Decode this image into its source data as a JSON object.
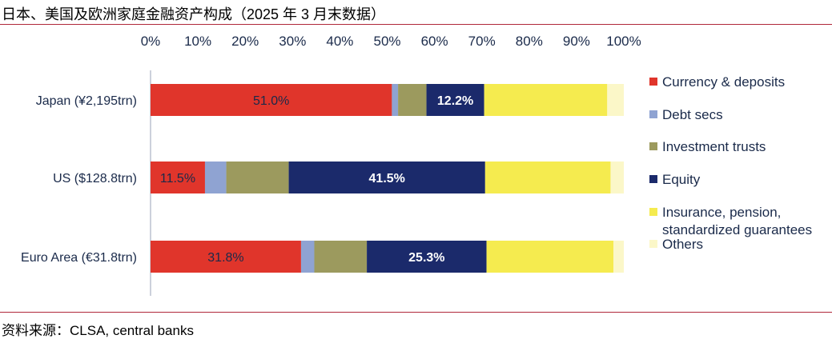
{
  "title": "日本、美国及欧洲家庭金融资产构成（2025 年 3 月末数据）",
  "source": "资料来源：CLSA, central banks",
  "chart_data": {
    "type": "bar",
    "orientation": "horizontal",
    "stacked": true,
    "percent": true,
    "categories": [
      "Japan (¥2,195trn)",
      "US ($128.8trn)",
      "Euro Area (€31.8trn)"
    ],
    "x_ticks": [
      "0%",
      "10%",
      "20%",
      "30%",
      "40%",
      "50%",
      "60%",
      "70%",
      "80%",
      "90%",
      "100%"
    ],
    "xlim": [
      0,
      100
    ],
    "legend_position": "right",
    "grid": false,
    "series": [
      {
        "name": "Currency & deposits",
        "color": "#e0352b",
        "values": [
          51.0,
          11.5,
          31.8
        ],
        "labels": [
          "51.0%",
          "11.5%",
          "31.8%"
        ]
      },
      {
        "name": "Debt secs",
        "color": "#8fa3d2",
        "values": [
          1.3,
          4.5,
          2.8
        ],
        "labels": [
          "",
          "",
          ""
        ]
      },
      {
        "name": "Investment trusts",
        "color": "#9c9a5e",
        "values": [
          6.0,
          13.2,
          11.1
        ],
        "labels": [
          "",
          "",
          ""
        ]
      },
      {
        "name": "Equity",
        "color": "#1b2a6b",
        "values": [
          12.2,
          41.5,
          25.3
        ],
        "labels": [
          "12.2%",
          "41.5%",
          "25.3%"
        ]
      },
      {
        "name": "Insurance, pension, standardized guarantees",
        "legend_lines": [
          "Insurance, pension,",
          "standardized guarantees"
        ],
        "color": "#f5eb4f",
        "values": [
          26.0,
          26.5,
          26.8
        ],
        "labels": [
          "",
          "",
          ""
        ]
      },
      {
        "name": "Others",
        "color": "#fbf7c8",
        "values": [
          3.5,
          2.8,
          2.2
        ],
        "labels": [
          "",
          "",
          ""
        ]
      }
    ]
  }
}
